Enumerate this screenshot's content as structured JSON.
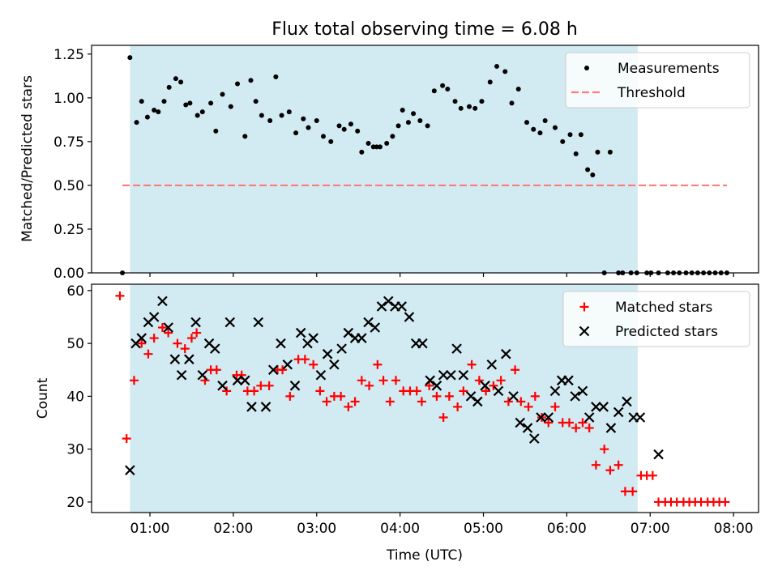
{
  "chart_data": {
    "title": "Flux total observing time = 6.08 h",
    "xlabel": "Time (UTC)",
    "x_tick_labels": [
      "01:00",
      "02:00",
      "03:00",
      "04:00",
      "05:00",
      "06:00",
      "07:00",
      "08:00"
    ],
    "x_tick_hours": [
      1,
      2,
      3,
      4,
      5,
      6,
      7,
      8
    ],
    "xlim": [
      0.3,
      8.3
    ],
    "observing_window": {
      "start": 0.76,
      "end": 6.85,
      "color": "#add8e6"
    },
    "panels": [
      {
        "id": "ratio",
        "type": "scatter",
        "ylabel": "Matched/Predicted stars",
        "ylim": [
          0,
          1.3
        ],
        "y_ticks": [
          0,
          0.25,
          0.5,
          0.75,
          1.0,
          1.25
        ],
        "y_tick_labels": [
          "0.00",
          "0.25",
          "0.50",
          "0.75",
          "1.00",
          "1.25"
        ],
        "legend_position": "top-right",
        "series": [
          {
            "name": "Measurements",
            "marker": "dot",
            "color": "#000000",
            "x": [
              0.67,
              0.76,
              0.84,
              0.9,
              0.97,
              1.05,
              1.1,
              1.17,
              1.23,
              1.31,
              1.37,
              1.43,
              1.48,
              1.57,
              1.63,
              1.73,
              1.79,
              1.87,
              1.97,
              2.05,
              2.14,
              2.21,
              2.27,
              2.34,
              2.44,
              2.51,
              2.58,
              2.67,
              2.75,
              2.84,
              2.9,
              3.0,
              3.08,
              3.17,
              3.27,
              3.33,
              3.41,
              3.49,
              3.54,
              3.62,
              3.68,
              3.72,
              3.76,
              3.84,
              3.91,
              3.98,
              4.03,
              4.1,
              4.16,
              4.24,
              4.33,
              4.41,
              4.51,
              4.57,
              4.66,
              4.73,
              4.83,
              4.9,
              4.98,
              5.08,
              5.16,
              5.26,
              5.34,
              5.42,
              5.52,
              5.6,
              5.68,
              5.74,
              5.86,
              5.95,
              6.04,
              6.11,
              6.17,
              6.25,
              6.31,
              6.37,
              6.45,
              6.52,
              6.62,
              6.67,
              6.77,
              6.84,
              6.96,
              7.01,
              7.1,
              7.21,
              7.28,
              7.35,
              7.43,
              7.5,
              7.57,
              7.64,
              7.71,
              7.78,
              7.85,
              7.92
            ],
            "y": [
              0.0,
              1.23,
              0.86,
              0.98,
              0.89,
              0.93,
              0.92,
              0.98,
              1.06,
              1.11,
              1.09,
              0.96,
              0.97,
              0.9,
              0.92,
              0.97,
              0.81,
              1.02,
              0.95,
              1.08,
              0.78,
              1.1,
              0.98,
              0.9,
              0.87,
              1.12,
              0.9,
              0.92,
              0.8,
              0.88,
              0.83,
              0.87,
              0.78,
              0.75,
              0.84,
              0.82,
              0.85,
              0.81,
              0.69,
              0.74,
              0.72,
              0.72,
              0.72,
              0.74,
              0.78,
              0.84,
              0.93,
              0.86,
              0.91,
              0.87,
              0.84,
              1.04,
              1.07,
              1.05,
              0.98,
              0.94,
              0.95,
              0.94,
              0.98,
              1.09,
              1.18,
              1.15,
              0.97,
              1.05,
              0.86,
              0.82,
              0.8,
              0.87,
              0.83,
              0.75,
              0.79,
              0.68,
              0.79,
              0.59,
              0.56,
              0.69,
              0.0,
              0.69,
              0.0,
              0.0,
              0.0,
              0.0,
              0.0,
              0.0,
              0.0,
              0.0,
              0.0,
              0.0,
              0.0,
              0.0,
              0.0,
              0.0,
              0.0,
              0.0,
              0.0,
              0.0
            ]
          },
          {
            "name": "Threshold",
            "marker": "dashed-line",
            "color": "#ff7a7a",
            "x": [
              0.67,
              7.92
            ],
            "y": [
              0.5,
              0.5
            ]
          }
        ]
      },
      {
        "id": "counts",
        "type": "scatter",
        "ylabel": "Count",
        "ylim": [
          18,
          61.2
        ],
        "y_ticks": [
          20,
          30,
          40,
          50,
          60
        ],
        "y_tick_labels": [
          "20",
          "30",
          "40",
          "50",
          "60"
        ],
        "legend_position": "top-right",
        "series": [
          {
            "name": "Matched stars",
            "marker": "plus",
            "color": "#ff0000",
            "x": [
              0.64,
              0.72,
              0.81,
              0.9,
              0.98,
              1.05,
              1.15,
              1.22,
              1.33,
              1.42,
              1.5,
              1.56,
              1.66,
              1.73,
              1.8,
              1.92,
              2.04,
              2.1,
              2.17,
              2.25,
              2.33,
              2.43,
              2.53,
              2.59,
              2.68,
              2.78,
              2.86,
              2.96,
              3.04,
              3.12,
              3.21,
              3.29,
              3.38,
              3.46,
              3.54,
              3.63,
              3.73,
              3.8,
              3.88,
              3.95,
              4.04,
              4.12,
              4.2,
              4.26,
              4.35,
              4.44,
              4.52,
              4.59,
              4.69,
              4.76,
              4.86,
              4.95,
              5.03,
              5.12,
              5.21,
              5.3,
              5.38,
              5.45,
              5.54,
              5.62,
              5.7,
              5.78,
              5.86,
              5.95,
              6.03,
              6.11,
              6.19,
              6.27,
              6.35,
              6.45,
              6.52,
              6.62,
              6.7,
              6.79,
              6.89,
              6.96,
              7.03,
              7.1,
              7.18,
              7.25,
              7.32,
              7.4,
              7.47,
              7.54,
              7.61,
              7.69,
              7.76,
              7.83,
              7.9
            ],
            "y": [
              59,
              32,
              43,
              50,
              48,
              51,
              53,
              52,
              50,
              49,
              51,
              52,
              43,
              45,
              45,
              41,
              44,
              44,
              41,
              41,
              42,
              42,
              45,
              45,
              40,
              47,
              47,
              46,
              41,
              39,
              40,
              40,
              38,
              39,
              43,
              42,
              46,
              43,
              39,
              43,
              41,
              41,
              41,
              39,
              42,
              40,
              36,
              40,
              38,
              41,
              46,
              43,
              41,
              42,
              43,
              39,
              45,
              39,
              38,
              40,
              36,
              35,
              38,
              35,
              35,
              34,
              35,
              34,
              27,
              30,
              26,
              27,
              22,
              22,
              25,
              25,
              25,
              20,
              20,
              20,
              20,
              20,
              20,
              20,
              20,
              20,
              20,
              20,
              20
            ]
          },
          {
            "name": "Predicted stars",
            "marker": "x",
            "color": "#000000",
            "x": [
              0.76,
              0.83,
              0.9,
              0.98,
              1.05,
              1.15,
              1.22,
              1.3,
              1.38,
              1.47,
              1.55,
              1.63,
              1.71,
              1.78,
              1.87,
              1.96,
              2.05,
              2.14,
              2.22,
              2.3,
              2.39,
              2.48,
              2.57,
              2.65,
              2.74,
              2.81,
              2.89,
              2.96,
              3.05,
              3.13,
              3.21,
              3.3,
              3.38,
              3.46,
              3.54,
              3.62,
              3.7,
              3.78,
              3.86,
              3.94,
              4.02,
              4.11,
              4.19,
              4.27,
              4.36,
              4.44,
              4.52,
              4.61,
              4.68,
              4.76,
              4.85,
              4.93,
              5.02,
              5.1,
              5.18,
              5.27,
              5.36,
              5.44,
              5.53,
              5.61,
              5.69,
              5.78,
              5.86,
              5.94,
              6.02,
              6.1,
              6.19,
              6.27,
              6.35,
              6.44,
              6.53,
              6.62,
              6.72,
              6.8,
              6.88,
              7.1
            ],
            "y": [
              26,
              50,
              51,
              54,
              55,
              58,
              53,
              47,
              44,
              47,
              54,
              44,
              50,
              49,
              42,
              54,
              43,
              43,
              38,
              54,
              38,
              45,
              50,
              46,
              42,
              52,
              50,
              51,
              44,
              48,
              46,
              49,
              52,
              51,
              51,
              54,
              53,
              57,
              58,
              57,
              57,
              55,
              50,
              50,
              43,
              42,
              44,
              44,
              49,
              44,
              40,
              39,
              42,
              46,
              41,
              48,
              40,
              35,
              34,
              32,
              36,
              36,
              41,
              43,
              43,
              40,
              41,
              36,
              38,
              38,
              34,
              37,
              39,
              36,
              36,
              29
            ]
          }
        ]
      }
    ]
  }
}
